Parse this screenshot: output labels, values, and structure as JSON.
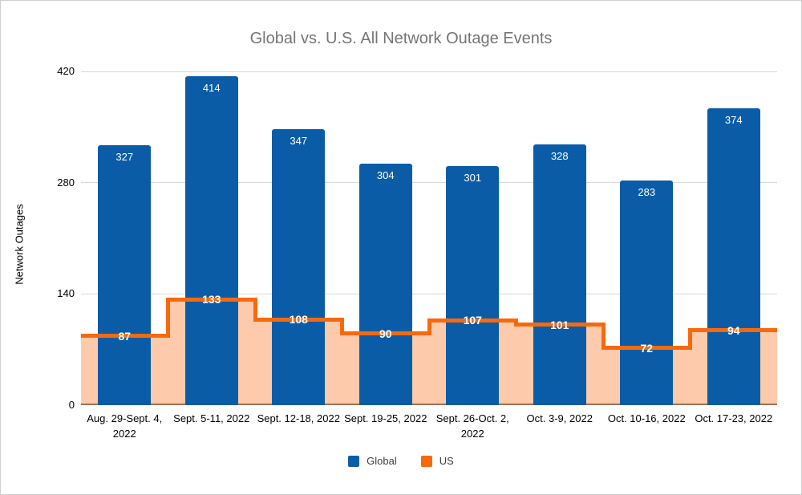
{
  "chart_data": {
    "type": "bar",
    "subtype": "combo-bar-with-step-area",
    "title": "Global vs. U.S. All Network Outage Events",
    "xlabel": "",
    "ylabel": "Network Outages",
    "categories": [
      "Aug. 29-Sept. 4, 2022",
      "Sept. 5-11, 2022",
      "Sept. 12-18, 2022",
      "Sept. 19-25, 2022",
      "Sept. 26-Oct. 2, 2022",
      "Oct. 3-9, 2022",
      "Oct. 10-16, 2022",
      "Oct. 17-23, 2022"
    ],
    "series": [
      {
        "name": "Global",
        "render": "bar",
        "color": "#0b5ca6",
        "values": [
          327,
          414,
          347,
          304,
          301,
          328,
          283,
          374
        ]
      },
      {
        "name": "US",
        "render": "step-area",
        "color": "#f8690e",
        "fill_rgba": "rgba(248,105,14,0.35)",
        "values": [
          87,
          133,
          108,
          90,
          107,
          101,
          72,
          94
        ]
      }
    ],
    "ylim": [
      0,
      420
    ],
    "yticks": [
      0,
      140,
      280,
      420
    ],
    "grid": true,
    "gridline_color": "#d9d9d9",
    "axis_line_color": "#757575",
    "title_color": "#757575",
    "label_text_color": "#ffffff",
    "legend_position": "bottom"
  }
}
